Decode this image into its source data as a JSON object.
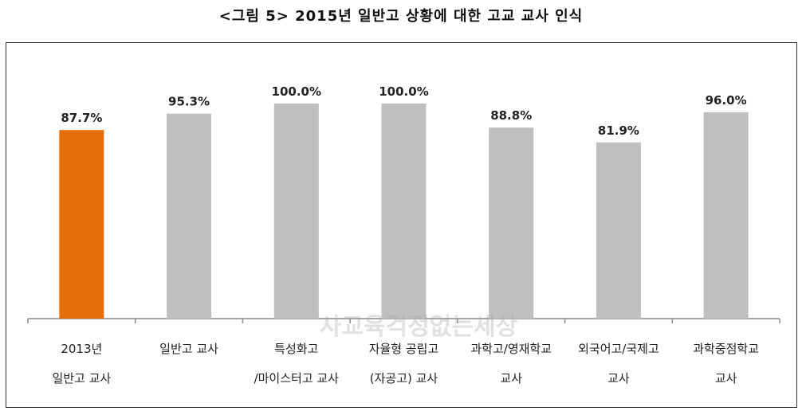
{
  "title": "<그림 5> 2015년 일반고 상황에 대한 고교 교사 인식",
  "watermark": "사교육걱정없는세상",
  "colors": {
    "highlight": "#E46C0A",
    "default": "#BFBFBF"
  },
  "chart_data": {
    "type": "bar",
    "categories": [
      "2013년\n일반고 교사",
      "일반고 교사",
      "특성화고\n/마이스터고 교사",
      "자율형 공립고\n(자공고) 교사",
      "과학고/영재학교\n교사",
      "외국어고/국제고\n교사",
      "과학중점학교\n교사"
    ],
    "values": [
      87.7,
      95.3,
      100.0,
      100.0,
      88.8,
      81.9,
      96.0
    ],
    "data_labels": [
      "87.7%",
      "95.3%",
      "100.0%",
      "100.0%",
      "88.8%",
      "81.9%",
      "96.0%"
    ],
    "highlight_index": 0,
    "ylim": [
      0,
      100
    ],
    "grid": false
  }
}
